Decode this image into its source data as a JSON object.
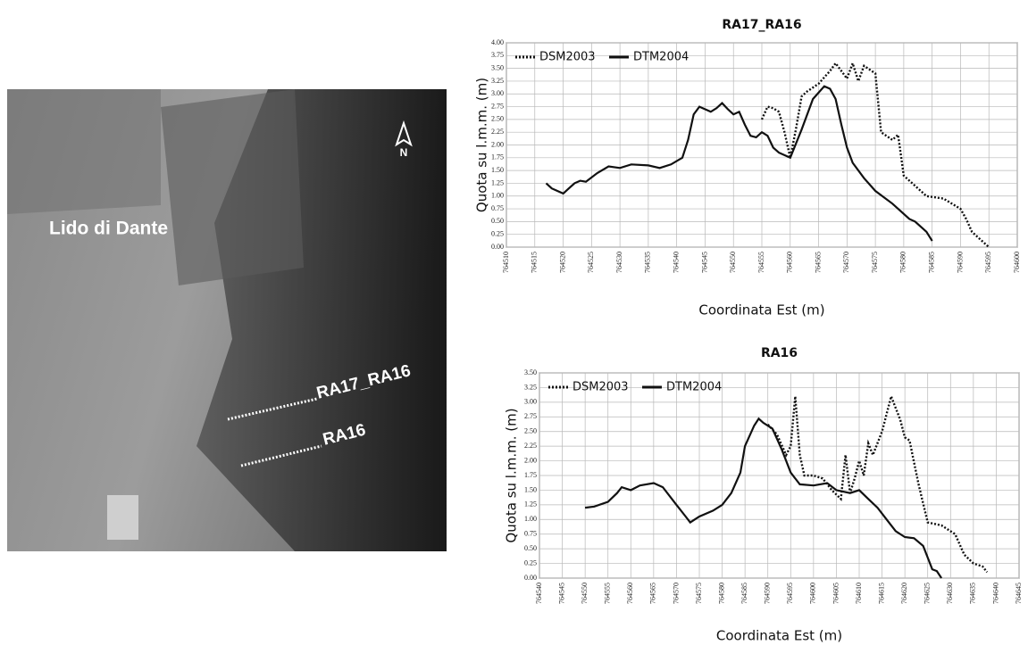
{
  "map_labels": {
    "place": "Lido di Dante",
    "north": "N",
    "profile_1": "RA17_RA16",
    "profile_2": "RA16"
  },
  "chart_data": [
    {
      "type": "line",
      "title": "RA17_RA16",
      "x_label": "Coordinata Est (m)",
      "y_label": "Quota su l.m.m. (m)",
      "grid": true,
      "legend": "upper left",
      "xlim": [
        764510,
        764600
      ],
      "xticks": [
        764510,
        764515,
        764520,
        764525,
        764530,
        764535,
        764540,
        764545,
        764550,
        764555,
        764560,
        764565,
        764570,
        764575,
        764580,
        764585,
        764590,
        764595,
        764600
      ],
      "ylim": [
        0,
        4
      ],
      "yticks": [
        {
          "value": 0,
          "label": "0.00"
        },
        {
          "value": 0.25,
          "label": "0.25"
        },
        {
          "value": 0.5,
          "label": "0.50"
        },
        {
          "value": 0.75,
          "label": "0.75"
        },
        {
          "value": 1,
          "label": "1.00"
        },
        {
          "value": 1.25,
          "label": "1.25"
        },
        {
          "value": 1.5,
          "label": "1.50"
        },
        {
          "value": 1.75,
          "label": "1.75"
        },
        {
          "value": 2,
          "label": "2.00"
        },
        {
          "value": 2.25,
          "label": "2.25"
        },
        {
          "value": 2.5,
          "label": "2.50"
        },
        {
          "value": 2.75,
          "label": "2.75"
        },
        {
          "value": 3,
          "label": "3.00"
        },
        {
          "value": 3.25,
          "label": "3.25"
        },
        {
          "value": 3.5,
          "label": "3.50"
        },
        {
          "value": 3.75,
          "label": "3.75"
        },
        {
          "value": 4,
          "label": "4.00"
        }
      ],
      "series": [
        {
          "name": "DSM2003",
          "color": "#111111",
          "line_style": "dotted",
          "x": [
            764555,
            764556,
            764557,
            764558,
            764559,
            764560,
            764561,
            764562,
            764563,
            764565,
            764567,
            764568,
            764569,
            764570,
            764571,
            764572,
            764573,
            764575,
            764576,
            764578,
            764579,
            764580,
            764582,
            764584,
            764587,
            764590,
            764591,
            764592,
            764593,
            764595
          ],
          "values": [
            2.5,
            2.75,
            2.72,
            2.65,
            2.25,
            1.75,
            2.3,
            2.95,
            3.05,
            3.2,
            3.45,
            3.6,
            3.45,
            3.3,
            3.6,
            3.25,
            3.55,
            3.4,
            2.25,
            2.1,
            2.2,
            1.4,
            1.2,
            1.0,
            0.95,
            0.75,
            0.55,
            0.3,
            0.2,
            0.0
          ]
        },
        {
          "name": "DTM2004",
          "color": "#111111",
          "line_style": "solid",
          "x": [
            764517,
            764518,
            764520,
            764522,
            764523,
            764524,
            764526,
            764528,
            764530,
            764532,
            764535,
            764537,
            764539,
            764541,
            764542,
            764543,
            764544,
            764546,
            764547,
            764548,
            764549,
            764550,
            764551,
            764552,
            764553,
            764554,
            764555,
            764556,
            764557,
            764558,
            764560,
            764562,
            764564,
            764566,
            764567,
            764568,
            764569,
            764570,
            764571,
            764573,
            764575,
            764578,
            764581,
            764582,
            764584,
            764585
          ],
          "values": [
            1.25,
            1.15,
            1.05,
            1.25,
            1.3,
            1.28,
            1.45,
            1.58,
            1.55,
            1.62,
            1.6,
            1.55,
            1.62,
            1.75,
            2.1,
            2.6,
            2.75,
            2.65,
            2.72,
            2.82,
            2.7,
            2.6,
            2.65,
            2.4,
            2.18,
            2.15,
            2.25,
            2.18,
            1.95,
            1.85,
            1.75,
            2.3,
            2.9,
            3.15,
            3.1,
            2.9,
            2.4,
            1.95,
            1.65,
            1.35,
            1.1,
            0.85,
            0.55,
            0.5,
            0.3,
            0.12
          ]
        }
      ]
    },
    {
      "type": "line",
      "title": "RA16",
      "x_label": "Coordinata Est (m)",
      "y_label": "Quota su l.m.m. (m)",
      "grid": true,
      "legend": "upper left",
      "xlim": [
        764540,
        764645
      ],
      "xticks": [
        764540,
        764545,
        764550,
        764555,
        764560,
        764565,
        764570,
        764575,
        764580,
        764585,
        764590,
        764595,
        764600,
        764605,
        764610,
        764615,
        764620,
        764625,
        764630,
        764635,
        764640,
        764645
      ],
      "ylim": [
        0,
        3.5
      ],
      "yticks": [
        {
          "value": 0,
          "label": "0.00"
        },
        {
          "value": 0.25,
          "label": "0.25"
        },
        {
          "value": 0.5,
          "label": "0.50"
        },
        {
          "value": 0.75,
          "label": "0.75"
        },
        {
          "value": 1,
          "label": "1.00"
        },
        {
          "value": 1.25,
          "label": "1.25"
        },
        {
          "value": 1.5,
          "label": "1.50"
        },
        {
          "value": 1.75,
          "label": "1.75"
        },
        {
          "value": 2,
          "label": "2.00"
        },
        {
          "value": 2.25,
          "label": "2.25"
        },
        {
          "value": 2.5,
          "label": "2.50"
        },
        {
          "value": 2.75,
          "label": "2.75"
        },
        {
          "value": 3,
          "label": "3.00"
        },
        {
          "value": 3.25,
          "label": "3.25"
        },
        {
          "value": 3.5,
          "label": "3.50"
        }
      ],
      "series": [
        {
          "name": "DSM2003",
          "color": "#111111",
          "line_style": "dotted",
          "x": [
            764590,
            764592,
            764594,
            764595,
            764596,
            764597,
            764598,
            764600,
            764602,
            764604,
            764606,
            764607,
            764608,
            764609,
            764610,
            764611,
            764612,
            764613,
            764615,
            764617,
            764619,
            764620,
            764621,
            764623,
            764625,
            764628,
            764631,
            764633,
            764635,
            764637,
            764638
          ],
          "values": [
            2.62,
            2.45,
            2.1,
            2.25,
            3.1,
            2.1,
            1.75,
            1.75,
            1.7,
            1.5,
            1.35,
            2.1,
            1.45,
            1.7,
            2.0,
            1.75,
            2.3,
            2.1,
            2.5,
            3.1,
            2.7,
            2.4,
            2.35,
            1.6,
            0.95,
            0.9,
            0.75,
            0.4,
            0.25,
            0.2,
            0.1
          ]
        },
        {
          "name": "DTM2004",
          "color": "#111111",
          "line_style": "solid",
          "x": [
            764550,
            764552,
            764555,
            764557,
            764558,
            764560,
            764562,
            764565,
            764567,
            764570,
            764572,
            764573,
            764575,
            764578,
            764580,
            764582,
            764584,
            764585,
            764587,
            764588,
            764589,
            764591,
            764593,
            764595,
            764597,
            764600,
            764603,
            764605,
            764608,
            764610,
            764612,
            764614,
            764616,
            764618,
            764620,
            764622,
            764624,
            764625,
            764626,
            764627,
            764628
          ],
          "values": [
            1.2,
            1.22,
            1.3,
            1.45,
            1.55,
            1.5,
            1.58,
            1.62,
            1.55,
            1.25,
            1.05,
            0.95,
            1.05,
            1.15,
            1.25,
            1.45,
            1.8,
            2.25,
            2.6,
            2.72,
            2.65,
            2.55,
            2.2,
            1.8,
            1.6,
            1.58,
            1.62,
            1.5,
            1.45,
            1.5,
            1.35,
            1.2,
            1.0,
            0.8,
            0.7,
            0.68,
            0.55,
            0.35,
            0.15,
            0.12,
            0.0
          ]
        }
      ]
    }
  ]
}
